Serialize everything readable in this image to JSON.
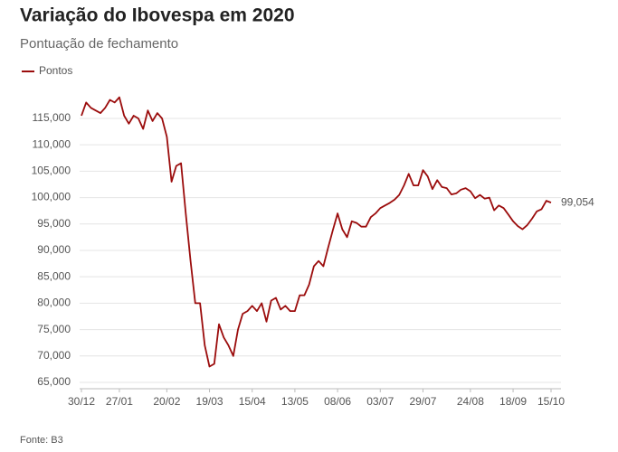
{
  "chart_data": {
    "type": "line",
    "title": "Variação do Ibovespa em 2020",
    "subtitle": "Pontuação de fechamento",
    "source": "Fonte: B3",
    "categories": [
      "30/12",
      null,
      null,
      null,
      null,
      null,
      null,
      null,
      "27/01",
      null,
      null,
      null,
      null,
      null,
      null,
      null,
      null,
      null,
      "20/02",
      null,
      null,
      null,
      null,
      null,
      null,
      null,
      null,
      "19/03",
      null,
      null,
      null,
      null,
      null,
      null,
      null,
      null,
      "15/04",
      null,
      null,
      null,
      null,
      null,
      null,
      null,
      null,
      "13/05",
      null,
      null,
      null,
      null,
      null,
      null,
      null,
      null,
      "08/06",
      null,
      null,
      null,
      null,
      null,
      null,
      null,
      null,
      "03/07",
      null,
      null,
      null,
      null,
      null,
      null,
      null,
      null,
      "29/07",
      null,
      null,
      null,
      null,
      null,
      null,
      null,
      null,
      null,
      "24/08",
      null,
      null,
      null,
      null,
      null,
      null,
      null,
      null,
      "18/09",
      null,
      null,
      null,
      null,
      null,
      null,
      null,
      "15/10"
    ],
    "series": [
      {
        "name": "Pontos",
        "color": "#9b0c0c",
        "values": [
          115500,
          118000,
          117000,
          116500,
          116000,
          117000,
          118500,
          118000,
          119000,
          115500,
          114000,
          115500,
          115000,
          113000,
          116500,
          114500,
          116000,
          115000,
          111500,
          103000,
          106000,
          106500,
          97000,
          88000,
          80000,
          80000,
          72000,
          68000,
          68500,
          76000,
          73500,
          72000,
          70000,
          75000,
          78000,
          78500,
          79500,
          78500,
          80000,
          76500,
          80500,
          81000,
          78800,
          79500,
          78500,
          78500,
          81500,
          81500,
          83500,
          87000,
          88000,
          87000,
          90500,
          93800,
          97000,
          94000,
          92500,
          95500,
          95200,
          94500,
          94500,
          96300,
          97000,
          98000,
          98500,
          99000,
          99600,
          100500,
          102300,
          104500,
          102300,
          102300,
          105200,
          104000,
          101600,
          103300,
          102000,
          101800,
          100600,
          100800,
          101500,
          101800,
          101200,
          99900,
          100500,
          99800,
          100000,
          97600,
          98500,
          98000,
          96800,
          95500,
          94600,
          94000,
          94800,
          96000,
          97400,
          97800,
          99400,
          99054
        ],
        "value_labels": [
          null,
          null,
          null,
          null,
          null,
          null,
          null,
          null,
          null,
          null,
          null,
          null,
          null,
          null,
          null,
          null,
          null,
          null,
          null,
          null,
          null,
          null,
          null,
          null,
          null,
          null,
          null,
          null,
          null,
          null,
          null,
          null,
          null,
          null,
          null,
          null,
          null,
          null,
          null,
          null,
          null,
          null,
          null,
          null,
          null,
          null,
          null,
          null,
          null,
          null,
          null,
          null,
          null,
          null,
          null,
          null,
          null,
          null,
          null,
          null,
          null,
          null,
          null,
          null,
          null,
          null,
          null,
          null,
          null,
          null,
          null,
          null,
          null,
          null,
          null,
          null,
          null,
          null,
          null,
          null,
          null,
          null,
          null,
          null,
          null,
          null,
          null,
          null,
          null,
          null,
          null,
          null,
          null,
          null,
          null,
          null,
          null,
          null,
          null,
          "99,054"
        ]
      }
    ],
    "ylim": [
      63800,
      120300
    ],
    "yticks": [
      {
        "value": 65000,
        "label": "65,000"
      },
      {
        "value": 70000,
        "label": "70,000"
      },
      {
        "value": 75000,
        "label": "75,000"
      },
      {
        "value": 80000,
        "label": "80,000"
      },
      {
        "value": 85000,
        "label": "85,000"
      },
      {
        "value": 90000,
        "label": "90,000"
      },
      {
        "value": 95000,
        "label": "95,000"
      },
      {
        "value": 100000,
        "label": "100,000"
      },
      {
        "value": 105000,
        "label": "105,000"
      },
      {
        "value": 110000,
        "label": "110,000"
      },
      {
        "value": 115000,
        "label": "115,000"
      }
    ],
    "grid": true
  }
}
